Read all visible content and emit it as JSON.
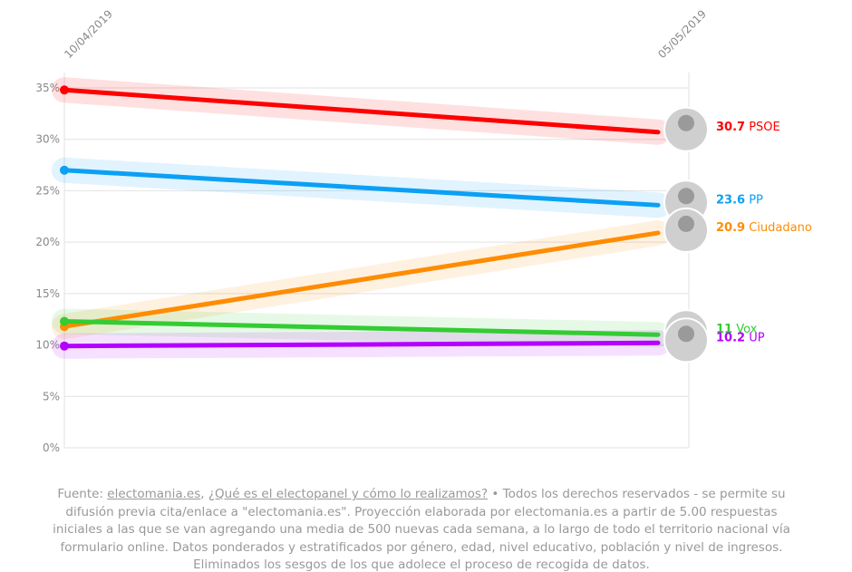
{
  "chart_data": {
    "type": "line",
    "x": [
      "10/04/2019",
      "05/05/2019"
    ],
    "series": [
      {
        "name": "PSOE",
        "color": "#ff0000",
        "values": [
          34.8,
          30.7
        ]
      },
      {
        "name": "PP",
        "color": "#0aa0f5",
        "values": [
          27.0,
          23.6
        ]
      },
      {
        "name": "Ciudadano",
        "color": "#ff8c00",
        "values": [
          11.8,
          20.9
        ]
      },
      {
        "name": "Vox",
        "color": "#33cc33",
        "values": [
          12.3,
          11
        ]
      },
      {
        "name": "UP",
        "color": "#b300ff",
        "values": [
          9.9,
          10.2
        ]
      }
    ],
    "ylim": [
      0,
      35
    ],
    "yticks": [
      {
        "value": 0,
        "label": "0%"
      },
      {
        "value": 5,
        "label": "5%"
      },
      {
        "value": 10,
        "label": "10%"
      },
      {
        "value": 15,
        "label": "15%"
      },
      {
        "value": 20,
        "label": "20%"
      },
      {
        "value": 25,
        "label": "25%"
      },
      {
        "value": 30,
        "label": "30%"
      },
      {
        "value": 35,
        "label": "35%"
      }
    ],
    "grid": true,
    "footer": {
      "prefix": "Fuente:",
      "link1": "electomania.es",
      "link2": "¿Qué es el electopanel y cómo lo realizamos?",
      "text": "• Todos los derechos reservados - se permite su difusión previa cita/enlace a \"electomania.es\". Proyección elaborada por electomania.es a partir de 5.00 respuestas iniciales a las que se van agregando una media de 500 nuevas cada semana, a lo largo de todo el territorio nacional vía formulario online. Datos ponderados y estratificados por género, edad, nivel educativo, población y nivel de ingresos. Eliminados los sesgos de los que adolece el proceso de recogida de datos."
    }
  }
}
